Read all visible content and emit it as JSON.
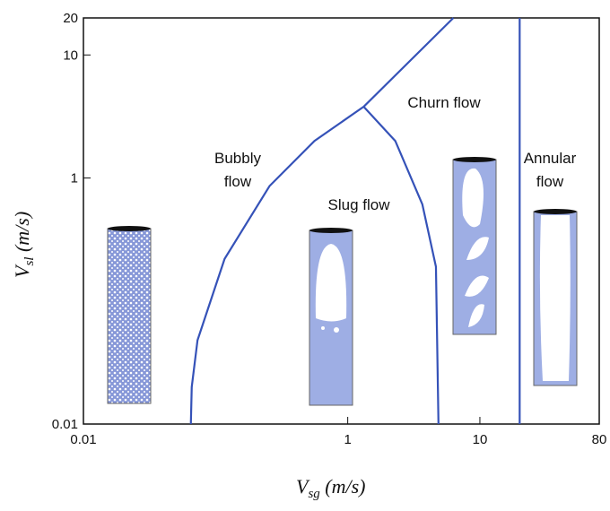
{
  "chart_data": {
    "type": "line",
    "xlabel": {
      "main": "V",
      "sub": "sg",
      "unit": " (m/s)"
    },
    "ylabel": {
      "main": "V",
      "sub": "sl",
      "unit": " (m/s)"
    },
    "xscale": "log",
    "yscale": "log",
    "xlim": [
      0.01,
      80
    ],
    "ylim": [
      0.01,
      20
    ],
    "xticks": [
      0.01,
      1,
      10,
      80
    ],
    "yticks": [
      0.01,
      1,
      10,
      20
    ],
    "color": "#3552b8",
    "boundaries": [
      {
        "x": [
          0.065,
          0.066,
          0.073,
          0.117,
          0.256,
          0.56,
          1.32,
          6.3
        ],
        "y": [
          0.01,
          0.02,
          0.048,
          0.22,
          0.86,
          2.0,
          3.8,
          20
        ]
      },
      {
        "x": [
          1.32,
          2.29,
          3.67,
          4.65,
          4.86
        ],
        "y": [
          3.8,
          2.0,
          0.61,
          0.19,
          0.01
        ]
      },
      {
        "x": [
          20,
          20
        ],
        "y": [
          0.01,
          20
        ]
      }
    ],
    "annotations": [
      "Bubbly\nflow",
      "Slug flow",
      "Churn flow",
      "Annular\nflow"
    ]
  }
}
